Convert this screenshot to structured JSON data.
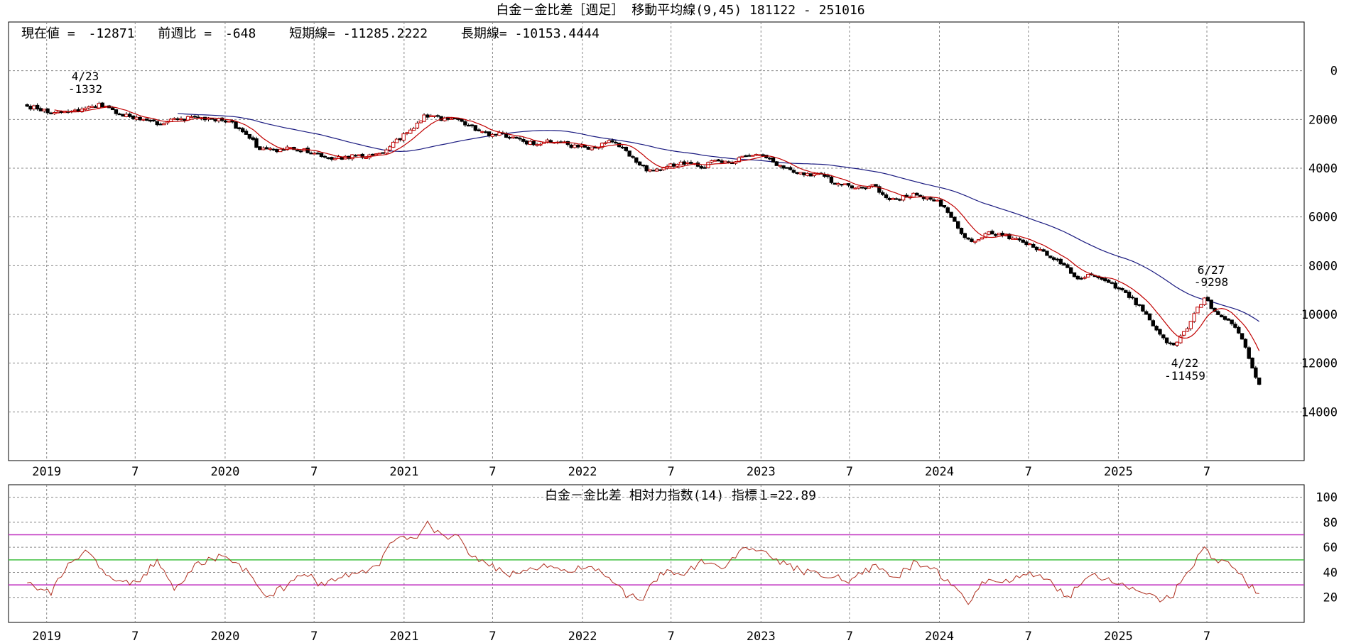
{
  "main": {
    "title": "白金－金比差［週足］ 移動平均線(9,45)  181122 - 251016",
    "info": {
      "current_label": "現在値 =",
      "current_value": "-12871",
      "prev_week_label": "前週比 =",
      "prev_week_value": "-648",
      "short_label": "短期線=",
      "short_value": "-11285.2222",
      "long_label": "長期線=",
      "long_value": "-10153.4444"
    },
    "annotations": [
      {
        "date": "4/23",
        "value": "-1332"
      },
      {
        "date": "6/27",
        "value": "-9298"
      },
      {
        "date": "4/22",
        "value": "-11459"
      }
    ]
  },
  "rsi": {
    "title": "白金－金比差     相対力指数(14) 指標１=22.89"
  },
  "x_axis": {
    "labels": [
      "2019",
      "7",
      "2020",
      "7",
      "2021",
      "7",
      "2022",
      "7",
      "2023",
      "7",
      "2024",
      "7",
      "2025",
      "7"
    ]
  },
  "colors": {
    "short_ma": "#c00000",
    "long_ma": "#1a1a80",
    "rsi_line": "#b03020",
    "line_70": "#c030c0",
    "line_50": "#40c040",
    "line_30": "#c030c0",
    "grid": "#888888"
  },
  "chart_data": [
    {
      "type": "candlestick",
      "title": "白金－金比差［週足］ 移動平均線(9,45)  181122 - 251016",
      "x_range": [
        "2018-11-22",
        "2025-10-16"
      ],
      "ylim": [
        -16000,
        2000
      ],
      "y_ticks": [
        0,
        -2000,
        -4000,
        -6000,
        -8000,
        -10000,
        -12000,
        -14000
      ],
      "grid": true,
      "close_path": [
        [
          "2018-11-22",
          -1450
        ],
        [
          "2019-01-15",
          -1750
        ],
        [
          "2019-02-20",
          -1650
        ],
        [
          "2019-03-25",
          -1550
        ],
        [
          "2019-04-23",
          -1400
        ],
        [
          "2019-06-01",
          -1800
        ],
        [
          "2019-07-10",
          -2000
        ],
        [
          "2019-08-20",
          -2200
        ],
        [
          "2019-09-15",
          -2000
        ],
        [
          "2019-11-01",
          -1950
        ],
        [
          "2019-12-15",
          -2000
        ],
        [
          "2020-01-10",
          -2100
        ],
        [
          "2020-02-15",
          -2600
        ],
        [
          "2020-03-10",
          -3200
        ],
        [
          "2020-04-15",
          -3250
        ],
        [
          "2020-05-20",
          -3200
        ],
        [
          "2020-06-20",
          -3300
        ],
        [
          "2020-07-20",
          -3500
        ],
        [
          "2020-08-20",
          -3600
        ],
        [
          "2020-09-20",
          -3500
        ],
        [
          "2020-10-20",
          -3500
        ],
        [
          "2020-11-25",
          -3300
        ],
        [
          "2020-12-20",
          -2800
        ],
        [
          "2021-01-15",
          -2500
        ],
        [
          "2021-02-15",
          -1800
        ],
        [
          "2021-03-20",
          -2000
        ],
        [
          "2021-04-15",
          -1900
        ],
        [
          "2021-05-15",
          -2300
        ],
        [
          "2021-06-15",
          -2600
        ],
        [
          "2021-07-15",
          -2550
        ],
        [
          "2021-08-20",
          -2800
        ],
        [
          "2021-09-20",
          -3000
        ],
        [
          "2021-11-01",
          -2900
        ],
        [
          "2021-12-15",
          -3100
        ],
        [
          "2022-01-25",
          -3200
        ],
        [
          "2022-03-01",
          -2900
        ],
        [
          "2022-04-01",
          -3300
        ],
        [
          "2022-05-01",
          -3900
        ],
        [
          "2022-05-25",
          -4200
        ],
        [
          "2022-06-25",
          -3900
        ],
        [
          "2022-08-01",
          -3800
        ],
        [
          "2022-09-01",
          -3950
        ],
        [
          "2022-10-01",
          -3700
        ],
        [
          "2022-11-01",
          -3800
        ],
        [
          "2022-12-01",
          -3500
        ],
        [
          "2022-12-30",
          -3500
        ],
        [
          "2023-02-01",
          -3800
        ],
        [
          "2023-03-01",
          -4100
        ],
        [
          "2023-04-01",
          -4300
        ],
        [
          "2023-05-01",
          -4200
        ],
        [
          "2023-06-01",
          -4600
        ],
        [
          "2023-07-10",
          -4800
        ],
        [
          "2023-08-20",
          -4700
        ],
        [
          "2023-09-20",
          -5300
        ],
        [
          "2023-11-01",
          -5100
        ],
        [
          "2023-12-15",
          -5200
        ],
        [
          "2024-01-10",
          -5600
        ],
        [
          "2024-02-10",
          -6500
        ],
        [
          "2024-03-05",
          -7100
        ],
        [
          "2024-04-10",
          -6600
        ],
        [
          "2024-05-20",
          -6800
        ],
        [
          "2024-06-20",
          -7100
        ],
        [
          "2024-07-20",
          -7300
        ],
        [
          "2024-09-01",
          -7800
        ],
        [
          "2024-10-10",
          -8600
        ],
        [
          "2024-11-01",
          -8300
        ],
        [
          "2024-12-15",
          -8700
        ],
        [
          "2025-01-20",
          -9200
        ],
        [
          "2025-02-25",
          -9900
        ],
        [
          "2025-03-25",
          -10800
        ],
        [
          "2025-04-22",
          -11300
        ],
        [
          "2025-05-20",
          -10600
        ],
        [
          "2025-06-10",
          -9800
        ],
        [
          "2025-06-27",
          -9300
        ],
        [
          "2025-07-20",
          -10000
        ],
        [
          "2025-08-20",
          -10300
        ],
        [
          "2025-09-15",
          -11100
        ],
        [
          "2025-10-01",
          -12200
        ],
        [
          "2025-10-16",
          -12871
        ]
      ],
      "short_ma": {
        "name": "短期線",
        "period": 9
      },
      "long_ma": {
        "name": "長期線",
        "period": 45
      },
      "annotations": [
        {
          "date": "2019-04-23",
          "value": -1332,
          "label": "4/23"
        },
        {
          "date": "2025-06-27",
          "value": -9298,
          "label": "6/27"
        },
        {
          "date": "2025-04-22",
          "value": -11459,
          "label": "4/22"
        }
      ]
    },
    {
      "type": "line",
      "title": "白金－金比差     相対力指数(14) 指標１=22.89",
      "ylim": [
        0,
        110
      ],
      "y_ticks": [
        100,
        80,
        60,
        40,
        20
      ],
      "reference_lines": [
        70,
        50,
        30
      ],
      "grid": true,
      "series": [
        {
          "values_path": [
            [
              "2018-11-22",
              32
            ],
            [
              "2019-01-10",
              24
            ],
            [
              "2019-02-10",
              45
            ],
            [
              "2019-03-20",
              57
            ],
            [
              "2019-05-01",
              40
            ],
            [
              "2019-06-01",
              30
            ],
            [
              "2019-07-10",
              33
            ],
            [
              "2019-08-15",
              50
            ],
            [
              "2019-09-20",
              27
            ],
            [
              "2019-11-01",
              45
            ],
            [
              "2019-12-15",
              52
            ],
            [
              "2020-01-20",
              50
            ],
            [
              "2020-02-20",
              38
            ],
            [
              "2020-03-20",
              20
            ],
            [
              "2020-05-01",
              28
            ],
            [
              "2020-06-10",
              40
            ],
            [
              "2020-07-20",
              28
            ],
            [
              "2020-08-20",
              38
            ],
            [
              "2020-10-01",
              40
            ],
            [
              "2020-11-10",
              47
            ],
            [
              "2020-12-15",
              70
            ],
            [
              "2021-01-20",
              66
            ],
            [
              "2021-02-15",
              80
            ],
            [
              "2021-03-20",
              68
            ],
            [
              "2021-04-20",
              70
            ],
            [
              "2021-05-20",
              52
            ],
            [
              "2021-07-01",
              45
            ],
            [
              "2021-08-10",
              38
            ],
            [
              "2021-09-20",
              45
            ],
            [
              "2021-11-01",
              43
            ],
            [
              "2021-12-10",
              40
            ],
            [
              "2022-01-15",
              47
            ],
            [
              "2022-02-20",
              35
            ],
            [
              "2022-04-01",
              22
            ],
            [
              "2022-05-01",
              17
            ],
            [
              "2022-06-10",
              40
            ],
            [
              "2022-07-20",
              38
            ],
            [
              "2022-09-01",
              48
            ],
            [
              "2022-10-10",
              42
            ],
            [
              "2022-11-25",
              57
            ],
            [
              "2023-01-10",
              58
            ],
            [
              "2023-02-15",
              47
            ],
            [
              "2023-04-01",
              40
            ],
            [
              "2023-05-20",
              38
            ],
            [
              "2023-07-01",
              32
            ],
            [
              "2023-08-20",
              45
            ],
            [
              "2023-10-01",
              35
            ],
            [
              "2023-11-10",
              47
            ],
            [
              "2023-12-20",
              42
            ],
            [
              "2024-02-01",
              30
            ],
            [
              "2024-03-01",
              15
            ],
            [
              "2024-04-10",
              37
            ],
            [
              "2024-05-20",
              32
            ],
            [
              "2024-07-01",
              39
            ],
            [
              "2024-08-10",
              34
            ],
            [
              "2024-09-20",
              20
            ],
            [
              "2024-11-01",
              38
            ],
            [
              "2024-12-20",
              34
            ],
            [
              "2025-02-01",
              28
            ],
            [
              "2025-03-20",
              18
            ],
            [
              "2025-04-22",
              22
            ],
            [
              "2025-05-25",
              42
            ],
            [
              "2025-06-27",
              58
            ],
            [
              "2025-07-20",
              50
            ],
            [
              "2025-08-25",
              44
            ],
            [
              "2025-09-20",
              32
            ],
            [
              "2025-10-16",
              23
            ]
          ]
        }
      ]
    }
  ]
}
